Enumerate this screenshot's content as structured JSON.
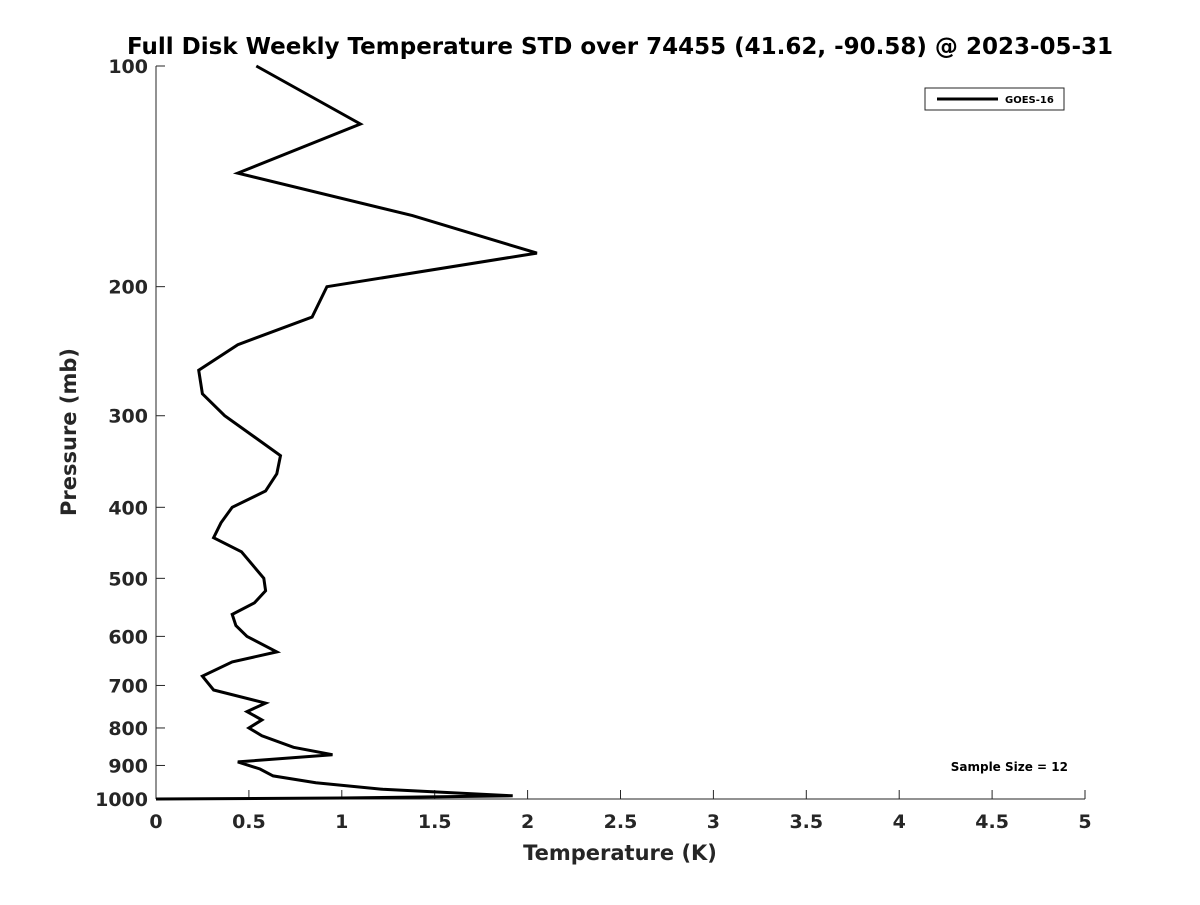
{
  "chart_data": {
    "type": "line",
    "title": "Full Disk Weekly Temperature STD over 74455 (41.62, -90.58) @ 2023-05-31",
    "xlabel": "Temperature (K)",
    "ylabel": "Pressure (mb)",
    "xlim": [
      0,
      5
    ],
    "ylim": [
      100,
      1000
    ],
    "yscale": "log",
    "y_reversed": true,
    "xticks": [
      "0",
      "0.5",
      "1",
      "1.5",
      "2",
      "2.5",
      "3",
      "3.5",
      "4",
      "4.5",
      "5"
    ],
    "yticks": [
      "100",
      "200",
      "300",
      "400",
      "500",
      "600",
      "700",
      "800",
      "900",
      "1000"
    ],
    "grid": false,
    "legend_position": "top-right",
    "annotation": "Sample Size = 12",
    "series": [
      {
        "name": "GOES-16",
        "color": "#000000",
        "x": [
          0.54,
          1.1,
          0.44,
          1.38,
          2.05,
          0.92,
          0.84,
          0.44,
          0.23,
          0.25,
          0.37,
          0.67,
          0.65,
          0.59,
          0.41,
          0.35,
          0.31,
          0.46,
          0.58,
          0.59,
          0.53,
          0.41,
          0.43,
          0.49,
          0.65,
          0.41,
          0.25,
          0.31,
          0.59,
          0.49,
          0.57,
          0.5,
          0.57,
          0.74,
          0.95,
          0.44,
          0.56,
          0.63,
          0.86,
          1.22,
          1.92,
          1.0,
          0.0
        ],
        "y": [
          100,
          120,
          140,
          160,
          180,
          200,
          220,
          240,
          260,
          280,
          300,
          340,
          360,
          380,
          400,
          420,
          440,
          460,
          500,
          520,
          540,
          560,
          580,
          600,
          630,
          650,
          680,
          710,
          740,
          760,
          780,
          800,
          820,
          850,
          870,
          890,
          910,
          930,
          950,
          970,
          990,
          997,
          1000
        ]
      }
    ]
  }
}
